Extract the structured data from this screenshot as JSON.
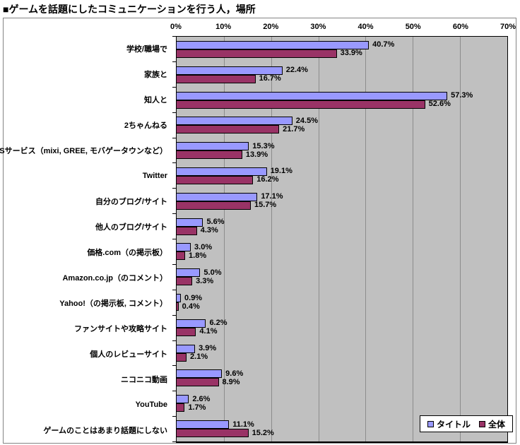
{
  "chart_data": {
    "type": "bar",
    "orientation": "horizontal",
    "title": "■ゲームを話題にしたコミュニケーションを行う人，場所",
    "categories": [
      "学校/職場で",
      "家族と",
      "知人と",
      "2ちゃんねる",
      "SNSサービス（mixi, GREE, モバゲータウンなど）",
      "Twitter",
      "自分のブログ/サイト",
      "他人のブログ/サイト",
      "価格.com（の掲示板）",
      "Amazon.co.jp（のコメント）",
      "Yahoo!（の掲示板, コメント）",
      "ファンサイトや攻略サイト",
      "個人のレビューサイト",
      "ニコニコ動画",
      "YouTube",
      "ゲームのことはあまり話題にしない"
    ],
    "series": [
      {
        "name": "タイトル",
        "color": "#9999ff",
        "values": [
          40.7,
          22.4,
          57.3,
          24.5,
          15.3,
          19.1,
          17.1,
          5.6,
          3.0,
          5.0,
          0.9,
          6.2,
          3.9,
          9.6,
          2.6,
          11.1
        ],
        "labels": [
          "40.7%",
          "22.4%",
          "57.3%",
          "24.5%",
          "15.3%",
          "19.1%",
          "17.1%",
          "5.6%",
          "3.0%",
          "5.0%",
          "0.9%",
          "6.2%",
          "3.9%",
          "9.6%",
          "2.6%",
          "11.1%"
        ]
      },
      {
        "name": "全体",
        "color": "#993366",
        "values": [
          33.9,
          16.7,
          52.6,
          21.7,
          13.9,
          16.2,
          15.7,
          4.3,
          1.8,
          3.3,
          0.4,
          4.1,
          2.1,
          8.9,
          1.7,
          15.2
        ],
        "labels": [
          "33.9%",
          "16.7%",
          "52.6%",
          "21.7%",
          "13.9%",
          "16.2%",
          "15.7%",
          "4.3%",
          "1.8%",
          "3.3%",
          "0.4%",
          "4.1%",
          "2.1%",
          "8.9%",
          "1.7%",
          "15.2%"
        ]
      }
    ],
    "xlim": [
      0,
      70
    ],
    "x_ticks": [
      "0%",
      "10%",
      "20%",
      "30%",
      "40%",
      "50%",
      "60%",
      "70%"
    ],
    "grid": true,
    "legend_position": "bottom-right",
    "plot_background": "#c0c0c0",
    "gridline_color": "#8c8c8c"
  }
}
